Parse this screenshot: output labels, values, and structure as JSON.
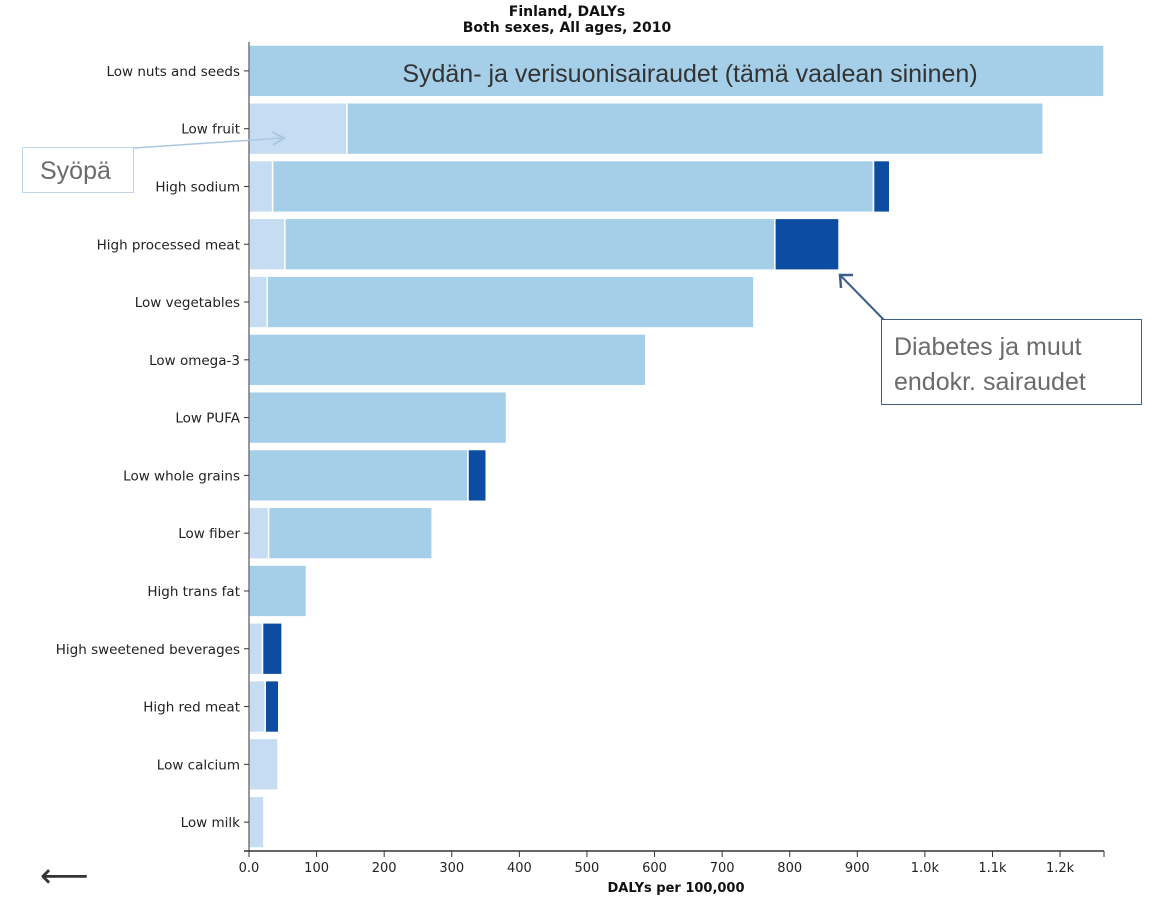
{
  "chart_data": {
    "type": "bar",
    "orientation": "horizontal",
    "stacked": true,
    "title": "Finland, DALYs",
    "subtitle": "Both sexes, All ages, 2010",
    "xlabel": "DALYs per 100,000",
    "ylabel": "",
    "xlim": [
      0,
      1265
    ],
    "x_ticks": [
      0,
      100,
      200,
      300,
      400,
      500,
      600,
      700,
      800,
      900,
      1000,
      1100,
      1200
    ],
    "x_tick_labels": [
      "0.0",
      "100",
      "200",
      "300",
      "400",
      "500",
      "600",
      "700",
      "800",
      "900",
      "1.0k",
      "1.1k",
      "1.2k"
    ],
    "categories": [
      "Low nuts and seeds",
      "Low fruit",
      "High sodium",
      "High processed meat",
      "Low vegetables",
      "Low omega-3",
      "Low PUFA",
      "Low whole grains",
      "Low fiber",
      "High trans fat",
      "High sweetened beverages",
      "High red meat",
      "Low calcium",
      "Low milk"
    ],
    "series": [
      {
        "color": "#c6dcf2",
        "values": [
          0,
          145,
          35,
          53,
          27,
          0,
          0,
          0,
          29,
          0,
          20,
          24,
          43,
          22
        ]
      },
      {
        "color": "#a5cfe8",
        "values": [
          1265,
          1030,
          889,
          725,
          720,
          587,
          381,
          324,
          242,
          85,
          0,
          0,
          0,
          0
        ]
      },
      {
        "color": "#0c4da2",
        "values": [
          0,
          0,
          24,
          95,
          0,
          0,
          0,
          27,
          0,
          0,
          29,
          20,
          0,
          0
        ]
      }
    ],
    "grid": false,
    "legend": "none"
  },
  "annotations": {
    "cardio_label": "Sydän- ja verisuonisairaudet (tämä vaalean sininen)",
    "cancer_label": "Syöpä",
    "diabetes_line1": "Diabetes ja muut",
    "diabetes_line2": "endokr. sairaudet"
  },
  "nav": {
    "back_arrow": "⟵"
  }
}
